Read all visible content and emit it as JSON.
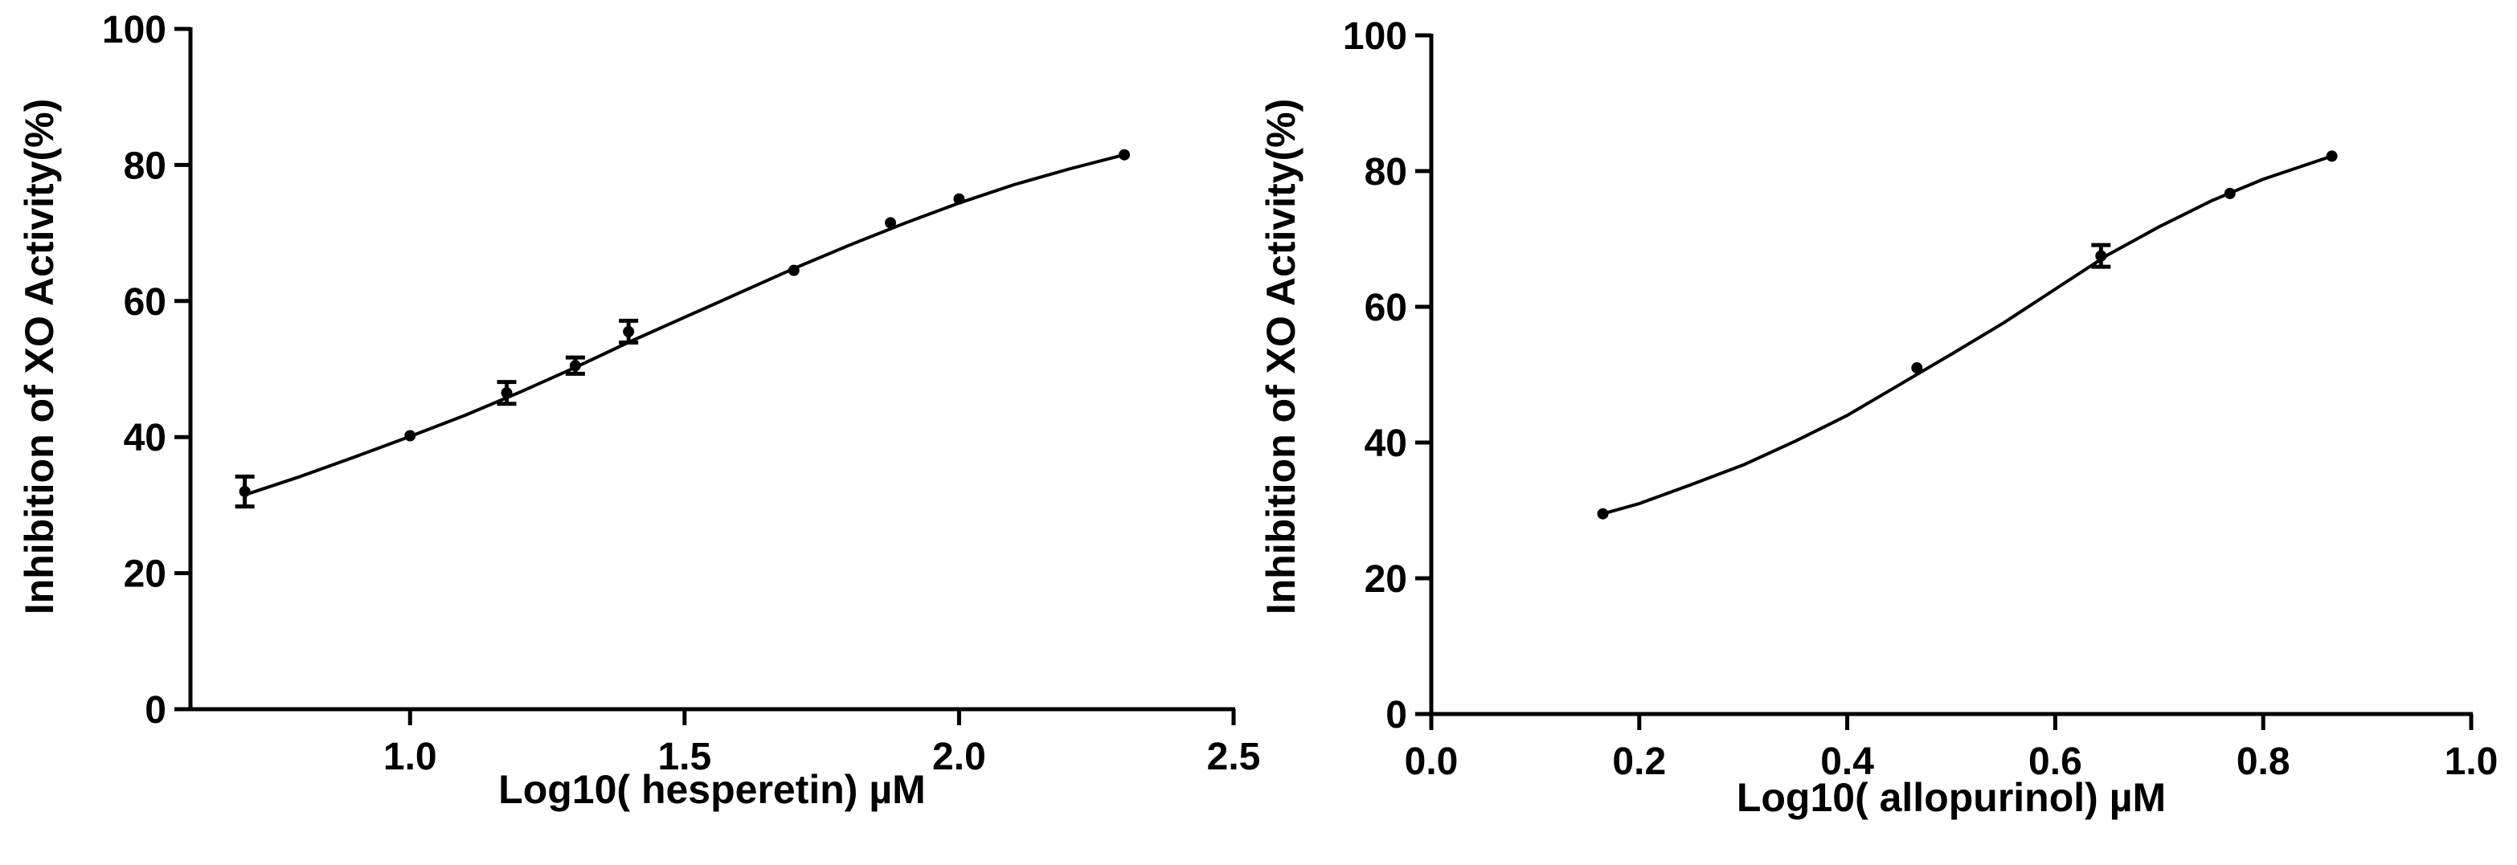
{
  "chart_data": [
    {
      "type": "scatter",
      "title": "",
      "xlabel": "Log10( hesperetin) µM",
      "ylabel": "Inhibition of XO Activity(%)",
      "xlim": [
        0.6,
        2.5
      ],
      "ylim": [
        0,
        100
      ],
      "xticks": [
        1.0,
        1.5,
        2.0,
        2.5
      ],
      "xtick_labels": [
        "1.0",
        "1.5",
        "2.0",
        "2.5"
      ],
      "yticks": [
        0,
        20,
        40,
        60,
        80,
        100
      ],
      "ytick_labels": [
        "0",
        "20",
        "40",
        "60",
        "80",
        "100"
      ],
      "series": [
        {
          "name": "hesperetin",
          "x": [
            0.699,
            1.0,
            1.176,
            1.301,
            1.398,
            1.699,
            1.875,
            2.0,
            2.301
          ],
          "y": [
            32.0,
            40.2,
            46.5,
            50.5,
            55.5,
            64.5,
            71.5,
            75.0,
            81.5
          ],
          "err": [
            2.2,
            0,
            1.6,
            1.2,
            1.6,
            0,
            0,
            0,
            0
          ]
        }
      ],
      "fit": {
        "x": [
          0.699,
          0.8,
          0.9,
          1.0,
          1.1,
          1.2,
          1.3,
          1.4,
          1.5,
          1.6,
          1.7,
          1.8,
          1.9,
          2.0,
          2.1,
          2.2,
          2.301
        ],
        "y": [
          31.5,
          34.2,
          37.1,
          40.1,
          43.2,
          46.6,
          50.2,
          54.0,
          57.6,
          61.2,
          64.8,
          68.2,
          71.4,
          74.4,
          77.1,
          79.4,
          81.5
        ]
      }
    },
    {
      "type": "scatter",
      "title": "",
      "xlabel": "Log10( allopurinol) µM",
      "ylabel": "Inhibition of XO Activity(%)",
      "xlim": [
        0.0,
        1.0
      ],
      "ylim": [
        0,
        100
      ],
      "xticks": [
        0.0,
        0.2,
        0.4,
        0.6,
        0.8,
        1.0
      ],
      "xtick_labels": [
        "0.0",
        "0.2",
        "0.4",
        "0.6",
        "0.8",
        "1.0"
      ],
      "yticks": [
        0,
        20,
        40,
        60,
        80,
        100
      ],
      "ytick_labels": [
        "0",
        "20",
        "40",
        "60",
        "80",
        "100"
      ],
      "series": [
        {
          "name": "allopurinol",
          "x": [
            0.165,
            0.467,
            0.644,
            0.768,
            0.866
          ],
          "y": [
            29.5,
            51.0,
            67.5,
            76.7,
            82.2
          ],
          "err": [
            0,
            0,
            1.6,
            0,
            0
          ]
        }
      ],
      "fit": {
        "x": [
          0.165,
          0.2,
          0.25,
          0.3,
          0.35,
          0.4,
          0.45,
          0.5,
          0.55,
          0.6,
          0.65,
          0.7,
          0.75,
          0.8,
          0.866
        ],
        "y": [
          29.5,
          31.0,
          33.8,
          36.7,
          40.2,
          44.0,
          48.5,
          53.0,
          57.6,
          62.6,
          67.6,
          71.8,
          75.6,
          78.8,
          82.2
        ]
      }
    }
  ]
}
